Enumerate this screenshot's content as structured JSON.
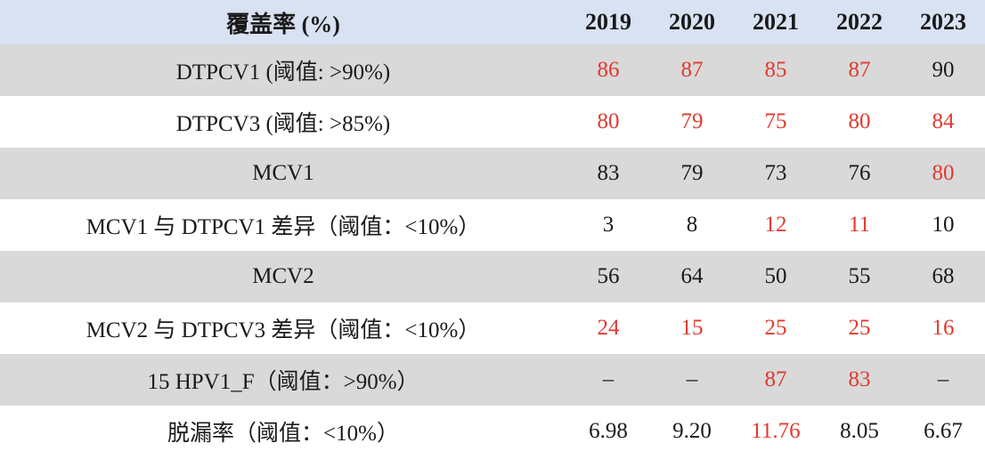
{
  "table": {
    "header": {
      "metric": "覆盖率 (%)",
      "years": [
        "2019",
        "2020",
        "2021",
        "2022",
        "2023"
      ]
    },
    "rows": [
      {
        "label": "DTPCV1 (阈值: >90%)",
        "values": [
          "86",
          "87",
          "85",
          "87",
          "90"
        ],
        "flagged": [
          true,
          true,
          true,
          true,
          false
        ]
      },
      {
        "label": "DTPCV3 (阈值: >85%)",
        "values": [
          "80",
          "79",
          "75",
          "80",
          "84"
        ],
        "flagged": [
          true,
          true,
          true,
          true,
          true
        ]
      },
      {
        "label": "MCV1",
        "values": [
          "83",
          "79",
          "73",
          "76",
          "80"
        ],
        "flagged": [
          false,
          false,
          false,
          false,
          true
        ]
      },
      {
        "label": "MCV1 与 DTPCV1 差异（阈值：<10%）",
        "values": [
          "3",
          "8",
          "12",
          "11",
          "10"
        ],
        "flagged": [
          false,
          false,
          true,
          true,
          false
        ]
      },
      {
        "label": "MCV2",
        "values": [
          "56",
          "64",
          "50",
          "55",
          "68"
        ],
        "flagged": [
          false,
          false,
          false,
          false,
          false
        ]
      },
      {
        "label": "MCV2 与 DTPCV3 差异（阈值：<10%）",
        "values": [
          "24",
          "15",
          "25",
          "25",
          "16"
        ],
        "flagged": [
          true,
          true,
          true,
          true,
          true
        ]
      },
      {
        "label": "15 HPV1_F（阈值：>90%）",
        "values": [
          "–",
          "–",
          "87",
          "83",
          "–"
        ],
        "flagged": [
          false,
          false,
          true,
          true,
          false
        ]
      },
      {
        "label": "脱漏率（阈值：<10%）",
        "values": [
          "6.98",
          "9.20",
          "11.76",
          "8.05",
          "6.67"
        ],
        "flagged": [
          false,
          false,
          true,
          false,
          false
        ]
      }
    ],
    "colors": {
      "header_bg": "#d9e2f3",
      "shaded_row_bg": "#d9d9d9",
      "flag_text": "#e03a2e",
      "normal_text": "#1a1a1a"
    }
  }
}
